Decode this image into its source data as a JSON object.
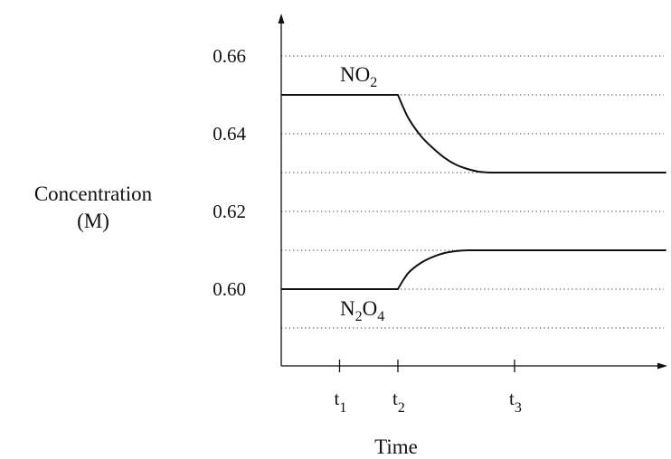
{
  "chart_data": {
    "type": "line",
    "title": "",
    "ylabel_line1": "Concentration",
    "ylabel_line2": "(M)",
    "xlabel": "Time",
    "ylim": [
      0.575,
      0.67
    ],
    "yticks": [
      "0.60",
      "0.62",
      "0.64",
      "0.66"
    ],
    "ytick_values": [
      0.6,
      0.62,
      0.64,
      0.66
    ],
    "grid_values": [
      0.59,
      0.6,
      0.61,
      0.62,
      0.63,
      0.64,
      0.65,
      0.66
    ],
    "grid": "dotted horizontal",
    "xticks": [
      {
        "base": "t",
        "sub": "1",
        "x": 1
      },
      {
        "base": "t",
        "sub": "2",
        "x": 2
      },
      {
        "base": "t",
        "sub": "3",
        "x": 4
      }
    ],
    "xlim": [
      0,
      6.6
    ],
    "series": [
      {
        "name_base": "NO",
        "name_sub": "2",
        "label_position": "above",
        "x": [
          0,
          2,
          2.1,
          2.2,
          2.4,
          2.6,
          2.8,
          3.0,
          3.2,
          3.4,
          3.6,
          4.0,
          5.0,
          6.6
        ],
        "values": [
          0.65,
          0.65,
          0.6465,
          0.6435,
          0.6393,
          0.6363,
          0.6338,
          0.632,
          0.6309,
          0.6302,
          0.63,
          0.63,
          0.63,
          0.63
        ]
      },
      {
        "name_base": "N",
        "name_sub1": "2",
        "name_mid": "O",
        "name_sub2": "4",
        "label_position": "below",
        "x": [
          0,
          2,
          2.1,
          2.2,
          2.4,
          2.6,
          2.8,
          3.0,
          3.2,
          3.4,
          3.6,
          4.0,
          5.0,
          6.6
        ],
        "values": [
          0.6,
          0.6,
          0.6025,
          0.6045,
          0.6068,
          0.6083,
          0.6093,
          0.6098,
          0.61,
          0.61,
          0.61,
          0.61,
          0.61,
          0.61
        ]
      }
    ]
  }
}
